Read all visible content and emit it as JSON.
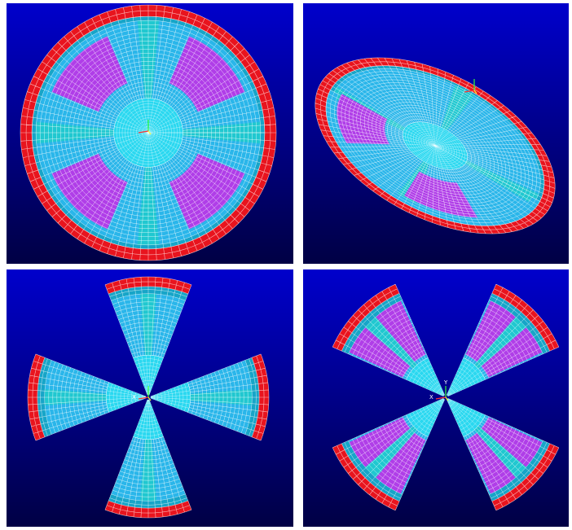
{
  "colors": {
    "background_top": "#0000cc",
    "background_bottom": "#000044",
    "edge_band": "#e8141e",
    "outer_band": "#17a5c8",
    "core": "#2ad8f0",
    "rib": "#20c8d0",
    "segment": "#2ab6ea",
    "patch": "#b03ee8",
    "mesh_line": "#ffffff"
  },
  "panels": [
    {
      "view": "top",
      "mesh": "full-disc"
    },
    {
      "view": "isometric",
      "mesh": "full-dome"
    },
    {
      "view": "top",
      "mesh": "four-sectors"
    },
    {
      "view": "top",
      "mesh": "four-sectors-with-patches"
    }
  ],
  "triads": [
    {
      "x_label": "",
      "y_label": ""
    },
    {
      "x_label": "",
      "y_label": ""
    },
    {
      "x_label": "X",
      "y_label": ""
    },
    {
      "x_label": "X",
      "y_label": "Y"
    }
  ]
}
